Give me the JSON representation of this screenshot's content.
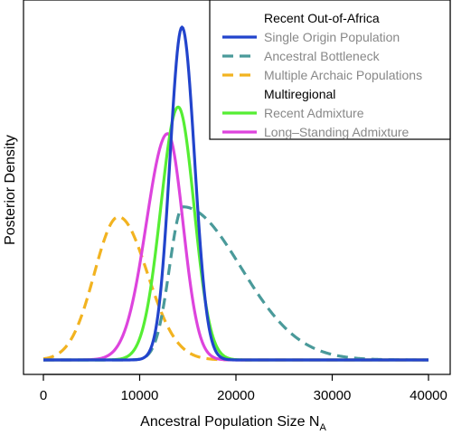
{
  "chart_data": {
    "type": "line",
    "xlabel": "Ancestral Population Size N",
    "xlabel_subscript": "A",
    "ylabel": "Posterior Density",
    "xlim": [
      -2000,
      42000
    ],
    "x_ticks": [
      0,
      10000,
      20000,
      30000,
      40000
    ],
    "x_tick_labels": [
      "0",
      "10000",
      "20000",
      "30000",
      "40000"
    ],
    "y_ticks_shown": false,
    "grid": false,
    "legend_position": "top-right",
    "legend_groups": [
      {
        "title": "Recent Out-of-Africa",
        "entries": [
          {
            "label": "Single Origin Population",
            "color": "#2244cc",
            "dash": "solid"
          },
          {
            "label": "Ancestral Bottleneck",
            "color": "#4a9a9a",
            "dash": "dashed"
          },
          {
            "label": "Multiple Archaic Populations",
            "color": "#f2b320",
            "dash": "dashed"
          }
        ]
      },
      {
        "title": "Multiregional",
        "entries": [
          {
            "label": "Recent Admixture",
            "color": "#55ee33",
            "dash": "solid"
          },
          {
            "label": "Long–Standing Admixture",
            "color": "#dd44dd",
            "dash": "solid"
          }
        ]
      }
    ],
    "series": [
      {
        "name": "Multiple Archaic Populations",
        "color": "#f2b320",
        "dash": "dashed",
        "peak_x": 7800,
        "peak_density": 0.43,
        "sd_left": 2500,
        "sd_right": 3000
      },
      {
        "name": "Ancestral Bottleneck",
        "color": "#4a9a9a",
        "dash": "dashed",
        "peak_x": 14500,
        "peak_density": 0.46,
        "sd_left": 1400,
        "sd_right": 6000
      },
      {
        "name": "Long–Standing Admixture",
        "color": "#dd44dd",
        "dash": "solid",
        "peak_x": 12900,
        "peak_density": 0.68,
        "sd_left": 2200,
        "sd_right": 1600
      },
      {
        "name": "Recent Admixture",
        "color": "#55ee33",
        "dash": "solid",
        "peak_x": 14000,
        "peak_density": 0.76,
        "sd_left": 1800,
        "sd_right": 1650
      },
      {
        "name": "Single Origin Population",
        "color": "#2244cc",
        "dash": "solid",
        "peak_x": 14400,
        "peak_density": 1.0,
        "sd_left": 1250,
        "sd_right": 1300
      }
    ]
  }
}
